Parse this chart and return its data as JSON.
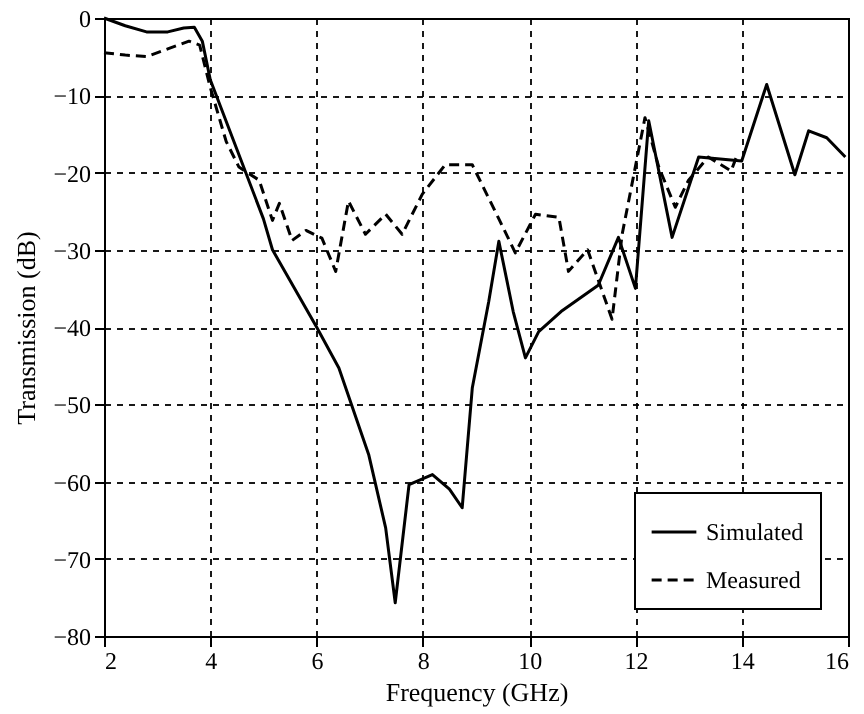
{
  "chart_data": {
    "type": "line",
    "xlabel": "Frequency (GHz)",
    "ylabel": "Transmission (dB)",
    "xlim": [
      2,
      16
    ],
    "xticks": [
      2,
      4,
      6,
      8,
      10,
      12,
      14,
      16
    ],
    "ylim": [
      -80,
      0
    ],
    "yticks": [
      -80,
      -70,
      -60,
      -50,
      -40,
      -30,
      -20,
      -10,
      0
    ],
    "grid": true,
    "legend": "bottom right",
    "marker": "none",
    "series": [
      {
        "name": "Simulated",
        "color": "#000000",
        "line_style": "solid",
        "x": [
          2,
          2.4,
          2.8,
          3.2,
          3.5,
          3.7,
          3.85,
          4,
          4.5,
          5,
          5.17,
          6,
          6.42,
          6.98,
          7.3,
          7.48,
          7.74,
          8.18,
          8.5,
          8.74,
          8.93,
          9.24,
          9.43,
          9.7,
          9.93,
          10.18,
          10.6,
          11.3,
          11.68,
          12.0,
          12.25,
          12.69,
          13.19,
          14.0,
          14.47,
          15.0,
          15.26,
          15.6,
          15.95
        ],
        "values": [
          0,
          -1,
          -1.8,
          -1.8,
          -1.3,
          -1.2,
          -3,
          -8,
          -17,
          -26,
          -30,
          -40,
          -45.3,
          -56.5,
          -66,
          -75.7,
          -60.4,
          -59.1,
          -61,
          -63.4,
          -47.9,
          -36.7,
          -28.9,
          -38,
          -44,
          -40.6,
          -38,
          -34.6,
          -28.4,
          -35,
          -13.3,
          -28.4,
          -18,
          -18.5,
          -8.6,
          -20.3,
          -14.6,
          -15.5,
          -18
        ]
      },
      {
        "name": "Measured",
        "color": "#000000",
        "line_style": "dashed",
        "x": [
          2,
          2.4,
          2.8,
          3.2,
          3.6,
          3.8,
          4,
          4.3,
          4.54,
          4.92,
          5.17,
          5.3,
          5.54,
          5.8,
          6.1,
          6.36,
          6.6,
          6.92,
          7.3,
          7.61,
          7.99,
          8.42,
          8.93,
          9.43,
          9.74,
          10.12,
          10.56,
          10.74,
          11.1,
          11.56,
          11.75,
          12.18,
          12.44,
          12.75,
          13.0,
          13.37,
          13.8,
          13.9
        ],
        "values": [
          -4.5,
          -4.8,
          -5,
          -4,
          -3,
          -3.5,
          -9,
          -16,
          -19.3,
          -21,
          -26.2,
          -24,
          -28.8,
          -27.5,
          -28.5,
          -32.8,
          -23.7,
          -28,
          -25.4,
          -28,
          -22.8,
          -19,
          -19,
          -26,
          -30.4,
          -25.4,
          -25.8,
          -32.8,
          -30,
          -39,
          -28,
          -12.9,
          -19.3,
          -24.5,
          -21,
          -18,
          -19.8,
          -18
        ]
      }
    ]
  }
}
